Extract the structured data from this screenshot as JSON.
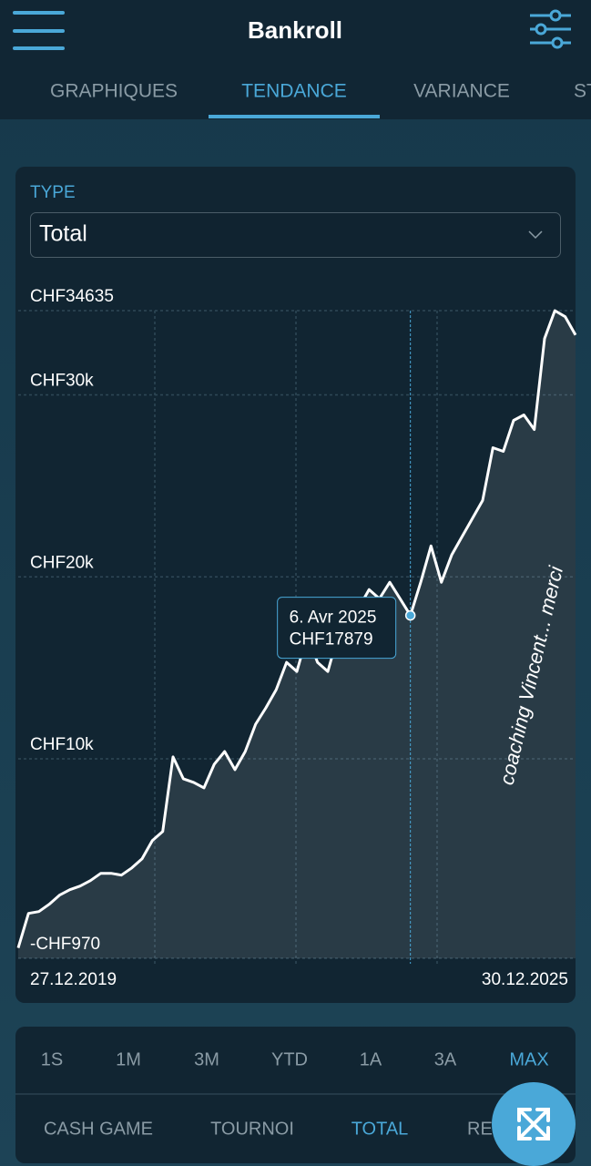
{
  "header": {
    "title": "Bankroll"
  },
  "tabs": {
    "items": [
      "GRAPHIQUES",
      "TENDANCE",
      "VARIANCE",
      "ST"
    ],
    "active": 1
  },
  "type_select": {
    "label": "TYPE",
    "value": "Total"
  },
  "chart_data": {
    "type": "line",
    "categories": [
      "27.12.2019",
      null,
      null,
      null,
      null,
      null,
      null,
      null,
      null,
      null,
      null,
      null,
      null,
      null,
      null,
      null,
      null,
      null,
      null,
      null,
      null,
      null,
      null,
      null,
      null,
      null,
      null,
      null,
      null,
      null,
      null,
      null,
      null,
      null,
      null,
      null,
      null,
      null,
      null,
      null,
      null,
      null,
      null,
      null,
      null,
      null,
      null,
      null,
      null,
      null,
      null,
      null,
      null,
      null,
      "30.12.2025"
    ],
    "values": [
      -400,
      1500,
      1600,
      2000,
      2500,
      2800,
      3000,
      3300,
      3700,
      3700,
      3600,
      4000,
      4500,
      5500,
      6000,
      10100,
      8900,
      8700,
      8400,
      9700,
      10400,
      9400,
      10400,
      11900,
      12800,
      13800,
      15300,
      14800,
      16800,
      15300,
      14800,
      16800,
      17300,
      18300,
      19300,
      18800,
      19700,
      18800,
      17879,
      19700,
      21700,
      19700,
      21200,
      22200,
      23200,
      24200,
      27100,
      26900,
      28600,
      28900,
      28100,
      33100,
      34635,
      34300,
      33300
    ],
    "color": "#ffffff",
    "ylim": [
      -970,
      34635
    ],
    "yticks": [
      {
        "value": -970,
        "label": "-CHF970"
      },
      {
        "value": 10000,
        "label": "CHF10k"
      },
      {
        "value": 20000,
        "label": "CHF20k"
      },
      {
        "value": 30000,
        "label": "CHF30k"
      },
      {
        "value": 34635,
        "label": "CHF34635"
      }
    ],
    "grid": true,
    "annotation": "coaching Vincent... merci",
    "tooltip": {
      "label": "6. Avr 2025",
      "value": 17879,
      "value_label": "CHF17879"
    }
  },
  "periods": {
    "items": [
      "1S",
      "1M",
      "3M",
      "YTD",
      "1A",
      "3A",
      "MAX"
    ],
    "active": 6
  },
  "filters": {
    "items": [
      "CASH GAME",
      "TOURNOI",
      "TOTAL",
      "RE"
    ],
    "active": 2
  }
}
